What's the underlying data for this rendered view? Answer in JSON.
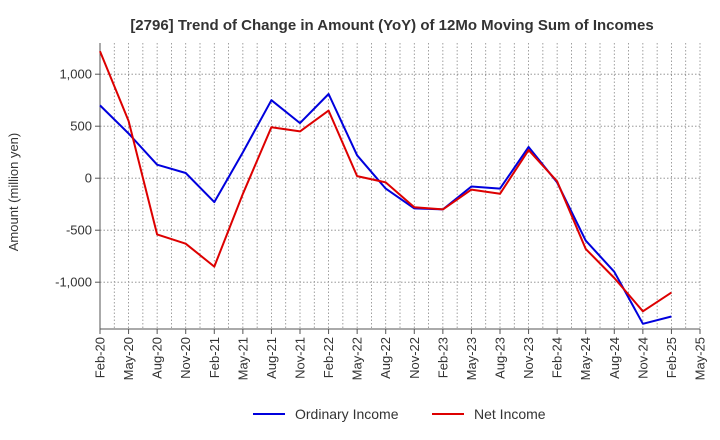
{
  "chart_data": {
    "type": "line",
    "title": "[2796]  Trend of Change in Amount (YoY) of 12Mo Moving Sum of Incomes",
    "ylabel": "Amount (million yen)",
    "xlabel": "",
    "ylim": [
      -1450,
      1300
    ],
    "yticks": [
      1000,
      500,
      0,
      -500,
      -1000
    ],
    "ytick_labels": [
      "1,000",
      "500",
      "0",
      "-500",
      "-1,000"
    ],
    "x": [
      "Feb-20",
      "May-20",
      "Aug-20",
      "Nov-20",
      "Feb-21",
      "May-21",
      "Aug-21",
      "Nov-21",
      "Feb-22",
      "May-22",
      "Aug-22",
      "Nov-22",
      "Feb-23",
      "May-23",
      "Aug-23",
      "Nov-23",
      "Feb-24",
      "May-24",
      "Aug-24",
      "Nov-24",
      "Feb-25",
      "May-25"
    ],
    "grid": true,
    "legend_position": "bottom",
    "series": [
      {
        "name": "Ordinary Income",
        "color": "#0000dd",
        "values": [
          700,
          430,
          130,
          50,
          -230,
          250,
          750,
          530,
          810,
          220,
          -100,
          -290,
          -300,
          -80,
          -100,
          300,
          -40,
          -600,
          -900,
          -1400,
          -1330,
          null
        ]
      },
      {
        "name": "Net Income",
        "color": "#dd0000",
        "values": [
          1220,
          550,
          -540,
          -630,
          -850,
          -150,
          490,
          450,
          650,
          20,
          -40,
          -280,
          -300,
          -110,
          -150,
          270,
          -30,
          -680,
          -960,
          -1280,
          -1100,
          null
        ]
      }
    ]
  }
}
